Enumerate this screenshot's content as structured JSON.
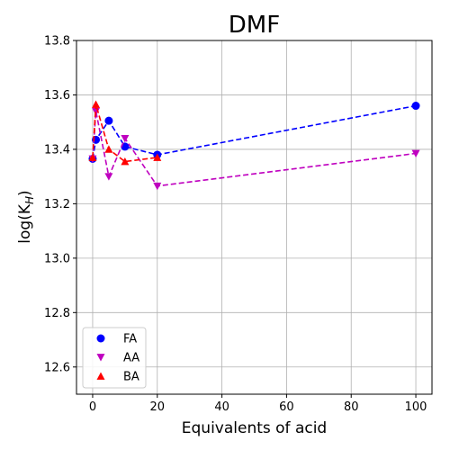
{
  "chart_data": {
    "type": "line",
    "title": "DMF",
    "xlabel": "Equivalents of acid",
    "ylabel_base": "log(K",
    "ylabel_sub": "H",
    "ylabel_close": ")",
    "xlim": [
      -5,
      105
    ],
    "ylim": [
      12.5,
      13.8
    ],
    "xticks": [
      0,
      20,
      40,
      60,
      80,
      100
    ],
    "yticks": [
      12.6,
      12.8,
      13.0,
      13.2,
      13.4,
      13.6,
      13.8
    ],
    "ytick_labels": [
      "12.6",
      "12.8",
      "13.0",
      "13.2",
      "13.4",
      "13.6",
      "13.8"
    ],
    "grid": true,
    "legend_position": "lower-left",
    "line_style": "dashed",
    "series": [
      {
        "name": "FA",
        "marker": "circle",
        "color": "#0000ff",
        "x": [
          0,
          1,
          5,
          10,
          20,
          100
        ],
        "y": [
          13.365,
          13.435,
          13.505,
          13.41,
          13.38,
          13.56
        ]
      },
      {
        "name": "AA",
        "marker": "triangle-down",
        "color": "#bf00bf",
        "x": [
          0,
          1,
          5,
          10,
          20,
          100
        ],
        "y": [
          13.365,
          13.54,
          13.3,
          13.44,
          13.265,
          13.385
        ]
      },
      {
        "name": "BA",
        "marker": "triangle-up",
        "color": "#ff0000",
        "x": [
          0,
          1,
          5,
          10,
          20
        ],
        "y": [
          13.37,
          13.565,
          13.4,
          13.355,
          13.37
        ]
      }
    ]
  }
}
